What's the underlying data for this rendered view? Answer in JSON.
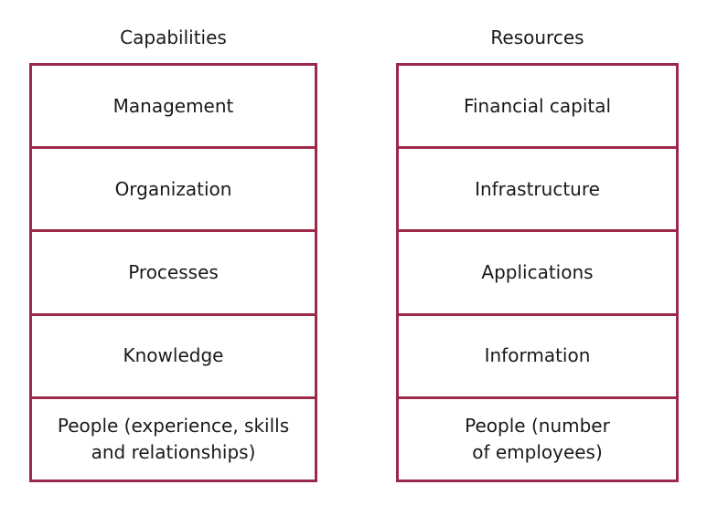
{
  "capabilities": {
    "title": "Capabilities",
    "items": [
      {
        "label": "Management"
      },
      {
        "label": "Organization"
      },
      {
        "label": "Processes"
      },
      {
        "label": "Knowledge"
      },
      {
        "label": "People (experience, skills\nand relationships)"
      }
    ]
  },
  "resources": {
    "title": "Resources",
    "items": [
      {
        "label": "Financial capital"
      },
      {
        "label": "Infrastructure"
      },
      {
        "label": "Applications"
      },
      {
        "label": "Information"
      },
      {
        "label": "People (number\nof employees)"
      }
    ]
  },
  "colors": {
    "border": "#9b2a4a",
    "text": "#1a1a1a",
    "background": "#ffffff"
  }
}
